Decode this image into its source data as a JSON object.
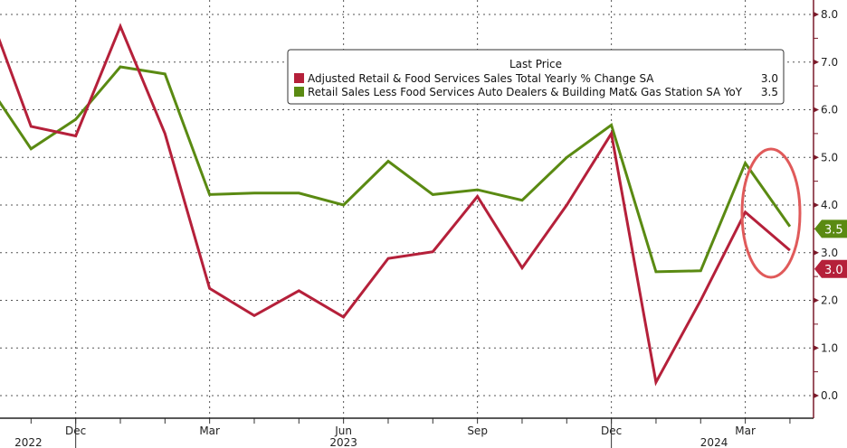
{
  "chart_data": {
    "type": "line",
    "x": [
      "Oct 2022",
      "Nov 2022",
      "Dec 2022",
      "Jan 2023",
      "Feb 2023",
      "Mar 2023",
      "Apr 2023",
      "May 2023",
      "Jun 2023",
      "Jul 2023",
      "Aug 2023",
      "Sep 2023",
      "Oct 2023",
      "Nov 2023",
      "Dec 2023",
      "Jan 2024",
      "Feb 2024",
      "Mar 2024",
      "Apr 2024"
    ],
    "series": [
      {
        "name": "Adjusted Retail & Food Services Sales Total Yearly % Change SA",
        "last": "3.0",
        "color": "#b5203a",
        "values": [
          8.2,
          5.65,
          5.45,
          7.75,
          5.5,
          2.25,
          1.68,
          2.2,
          1.65,
          2.88,
          3.02,
          4.18,
          2.68,
          4.0,
          5.5,
          0.28,
          2.0,
          3.85,
          3.05
        ]
      },
      {
        "name": "Retail Sales Less Food Services Auto Dealers & Building Mat& Gas Station SA YoY",
        "last": "3.5",
        "color": "#5a8a12",
        "values": [
          6.57,
          5.18,
          5.8,
          6.9,
          6.75,
          4.22,
          4.25,
          4.25,
          4.0,
          4.92,
          4.22,
          4.32,
          4.1,
          5.0,
          5.68,
          2.6,
          2.62,
          4.88,
          3.55
        ]
      }
    ],
    "legend_title": "Last Price",
    "legend_position": "top-right",
    "yticks": [
      "0.0",
      "1.0",
      "2.0",
      "3.0",
      "4.0",
      "5.0",
      "6.0",
      "7.0",
      "8.0"
    ],
    "ylim": [
      -0.5,
      8.3
    ],
    "xtick_labels": [
      {
        "label": "Dec",
        "index": 2
      },
      {
        "label": "Mar",
        "index": 5
      },
      {
        "label": "Jun",
        "index": 8
      },
      {
        "label": "Sep",
        "index": 11
      },
      {
        "label": "Dec",
        "index": 14
      },
      {
        "label": "Mar",
        "index": 17
      }
    ],
    "years": [
      {
        "label": "2022",
        "index": 0.9
      },
      {
        "label": "2023",
        "index": 8
      },
      {
        "label": "2024",
        "index": 16.3
      }
    ],
    "annotation": "red circle highlighting latest values",
    "grid": true
  }
}
